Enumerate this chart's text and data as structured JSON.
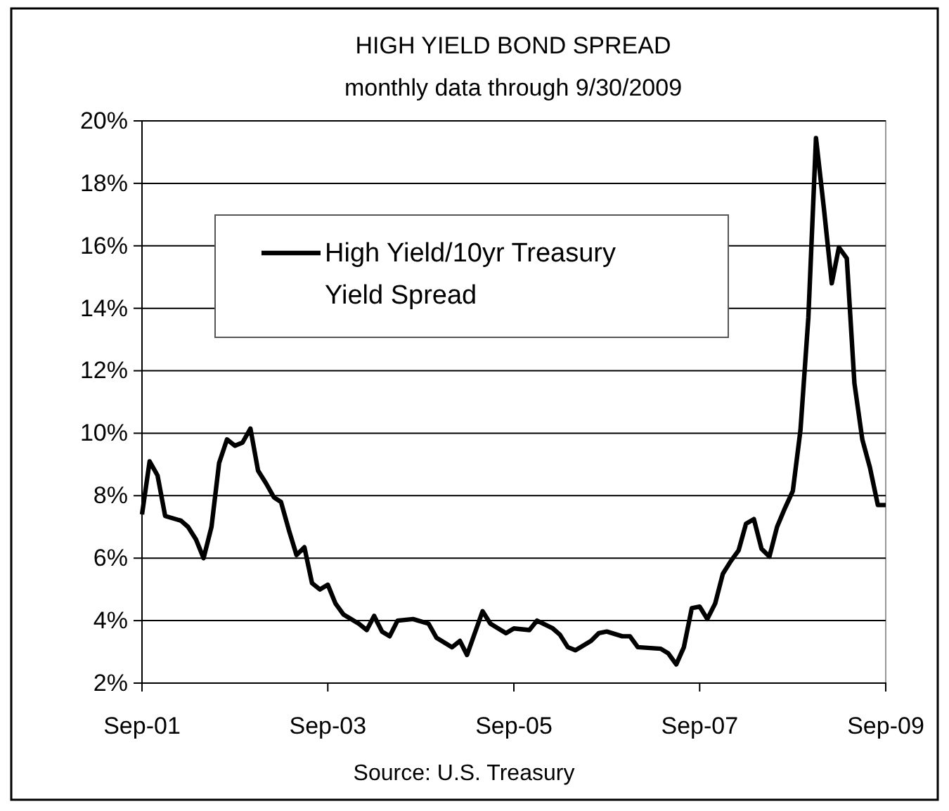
{
  "chart_data": {
    "type": "line",
    "title": "HIGH YIELD BOND SPREAD",
    "subtitle": "monthly data through 9/30/2009",
    "annotations": [
      "Source: U.S. Treasury"
    ],
    "x": [
      "2001-09",
      "2001-10",
      "2001-11",
      "2001-12",
      "2002-02",
      "2002-03",
      "2002-04",
      "2002-05",
      "2002-06",
      "2002-07",
      "2002-08",
      "2002-09",
      "2002-10",
      "2002-11",
      "2002-12",
      "2003-01",
      "2003-02",
      "2003-03",
      "2003-04",
      "2003-05",
      "2003-06",
      "2003-07",
      "2003-08",
      "2003-09",
      "2003-10",
      "2003-11",
      "2004-01",
      "2004-02",
      "2004-03",
      "2004-04",
      "2004-05",
      "2004-06",
      "2004-08",
      "2004-10",
      "2004-11",
      "2005-01",
      "2005-02",
      "2005-03",
      "2005-05",
      "2005-06",
      "2005-08",
      "2005-09",
      "2005-11",
      "2005-12",
      "2006-02",
      "2006-03",
      "2006-04",
      "2006-05",
      "2006-07",
      "2006-08",
      "2006-09",
      "2006-11",
      "2006-12",
      "2007-01",
      "2007-04",
      "2007-05",
      "2007-06",
      "2007-07",
      "2007-08",
      "2007-09",
      "2007-10",
      "2007-11",
      "2007-12",
      "2008-01",
      "2008-02",
      "2008-03",
      "2008-04",
      "2008-05",
      "2008-06",
      "2008-07",
      "2008-08",
      "2008-09",
      "2008-10",
      "2008-11",
      "2008-12",
      "2009-01",
      "2009-02",
      "2009-03",
      "2009-04",
      "2009-05",
      "2009-06",
      "2009-07",
      "2009-08",
      "2009-09"
    ],
    "series": [
      {
        "name": "High Yield/10yr Treasury Yield Spread",
        "color": "#000000",
        "values": [
          7.4,
          9.1,
          8.65,
          7.35,
          7.2,
          7.0,
          6.6,
          6.0,
          7.0,
          9.05,
          9.8,
          9.6,
          9.7,
          10.15,
          8.8,
          8.4,
          7.95,
          7.8,
          6.9,
          6.1,
          6.35,
          5.2,
          5.0,
          5.15,
          4.55,
          4.2,
          3.9,
          3.7,
          4.15,
          3.65,
          3.5,
          4.0,
          4.05,
          3.9,
          3.45,
          3.15,
          3.35,
          2.9,
          4.3,
          3.9,
          3.6,
          3.75,
          3.7,
          4.0,
          3.75,
          3.55,
          3.15,
          3.05,
          3.35,
          3.6,
          3.65,
          3.5,
          3.5,
          3.15,
          3.1,
          2.95,
          2.6,
          3.15,
          4.4,
          4.45,
          4.05,
          4.55,
          5.5,
          5.9,
          6.25,
          7.1,
          7.25,
          6.3,
          6.05,
          7.0,
          7.6,
          8.15,
          10.1,
          13.7,
          19.45,
          17.2,
          14.8,
          15.95,
          15.6,
          11.6,
          9.8,
          8.9,
          7.7,
          7.7
        ]
      }
    ],
    "xlim": [
      "2001-09",
      "2009-09"
    ],
    "xticks": [
      {
        "value": "2001-09",
        "label": "Sep-01"
      },
      {
        "value": "2003-09",
        "label": "Sep-03"
      },
      {
        "value": "2005-09",
        "label": "Sep-05"
      },
      {
        "value": "2007-09",
        "label": "Sep-07"
      },
      {
        "value": "2009-09",
        "label": "Sep-09"
      }
    ],
    "ylim": [
      2,
      20
    ],
    "yticks": [
      {
        "value": 2,
        "label": "2%"
      },
      {
        "value": 4,
        "label": "4%"
      },
      {
        "value": 6,
        "label": "6%"
      },
      {
        "value": 8,
        "label": "8%"
      },
      {
        "value": 10,
        "label": "10%"
      },
      {
        "value": 12,
        "label": "12%"
      },
      {
        "value": 14,
        "label": "14%"
      },
      {
        "value": 16,
        "label": "16%"
      },
      {
        "value": 18,
        "label": "18%"
      },
      {
        "value": 20,
        "label": "20%"
      }
    ],
    "grid": "y",
    "legend": "top",
    "marker": "none",
    "line_style": "solid"
  }
}
